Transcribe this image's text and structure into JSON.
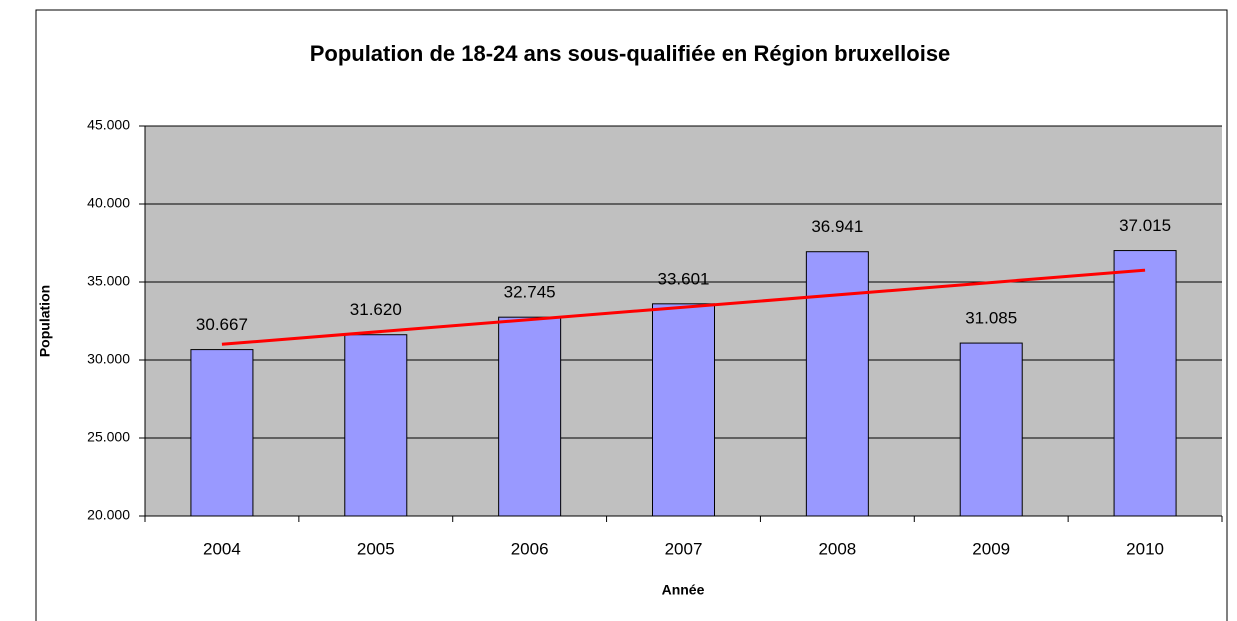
{
  "chart_data": {
    "type": "bar",
    "title": "Population de 18-24 ans sous-qualifiée en Région bruxelloise",
    "x_label": "Année",
    "y_label": "Population",
    "categories": [
      "2004",
      "2005",
      "2006",
      "2007",
      "2008",
      "2009",
      "2010"
    ],
    "values": [
      30667,
      31620,
      32745,
      33601,
      36941,
      31085,
      37015
    ],
    "value_labels": [
      "30.667",
      "31.620",
      "32.745",
      "33.601",
      "36.941",
      "31.085",
      "37.015"
    ],
    "color": "#9999ff",
    "trendline": {
      "color": "#ff0000",
      "values": [
        31007,
        35757
      ]
    },
    "ylim": [
      20000,
      45000
    ],
    "yticks": [
      {
        "value": 20000,
        "label": "20.000"
      },
      {
        "value": 25000,
        "label": "25.000"
      },
      {
        "value": 30000,
        "label": "30.000"
      },
      {
        "value": 35000,
        "label": "35.000"
      },
      {
        "value": 40000,
        "label": "40.000"
      },
      {
        "value": 45000,
        "label": "45.000"
      }
    ],
    "grid": true
  }
}
